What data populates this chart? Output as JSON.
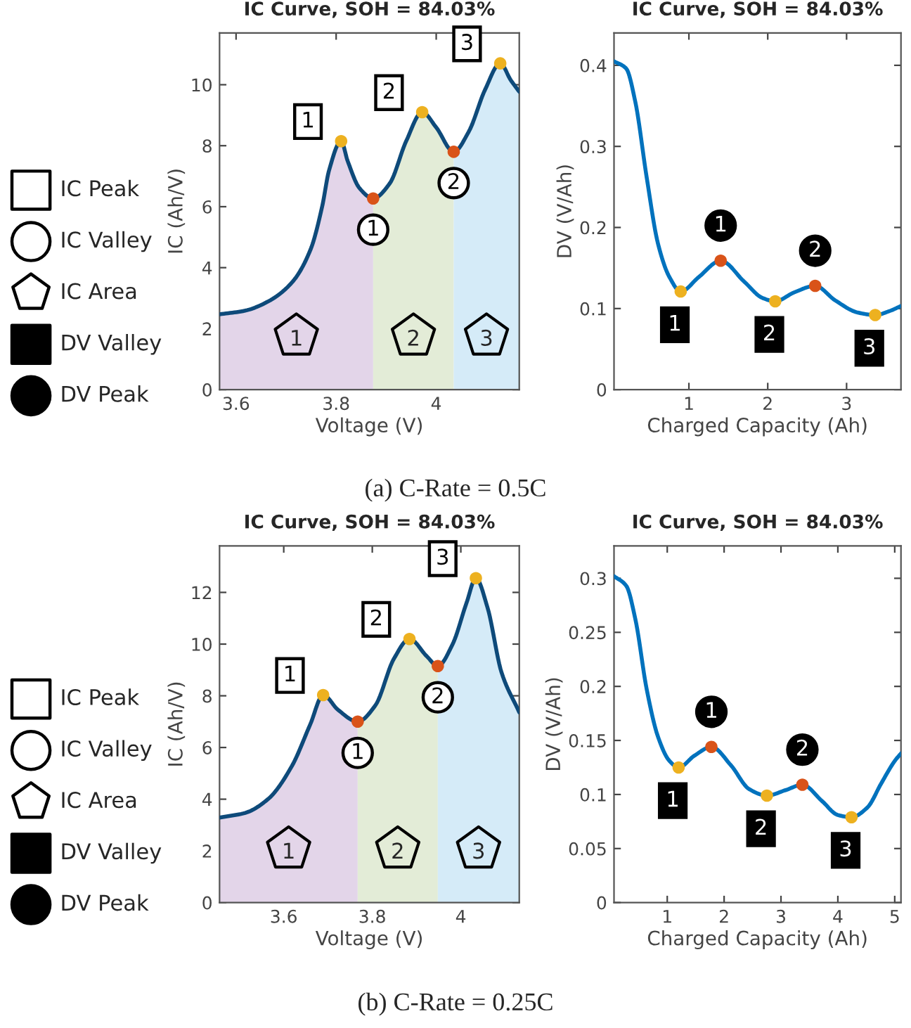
{
  "chart_data": [
    {
      "type": "other",
      "annotations": [
        "IC Peak",
        "IC Valley",
        "IC Area",
        "DV Valley",
        "DV Peak"
      ]
    },
    {
      "type": "line",
      "title": "IC Curve, SOH = 84.03%",
      "xlabel": "Voltage (V)",
      "ylabel": "IC (Ah/V)",
      "xlim": [
        3.567,
        4.166
      ],
      "ylim": [
        0,
        11.7
      ],
      "xticks": [
        3.6,
        3.8,
        4
      ],
      "yticks": [
        0,
        2,
        4,
        6,
        8,
        10
      ],
      "grid": false,
      "legend": false,
      "annotations": [
        "(a) C-Rate = 0.5C",
        "1",
        "2",
        "3",
        "1",
        "2"
      ],
      "series": [
        {
          "type": "area",
          "name": "1",
          "color": "#e3d5e9",
          "x": [
            3.567,
            3.618,
            3.665,
            3.712,
            3.749,
            3.772,
            3.786,
            3.81,
            3.823,
            3.847,
            3.874
          ],
          "values": [
            2.47,
            2.59,
            2.9,
            3.52,
            4.6,
            6.0,
            7.2,
            8.15,
            7.5,
            6.6,
            6.27
          ]
        },
        {
          "type": "area",
          "name": "2",
          "color": "#e3ecd7",
          "x": [
            3.874,
            3.907,
            3.94,
            3.972,
            4.0,
            4.035
          ],
          "values": [
            6.27,
            6.76,
            8.15,
            9.1,
            8.6,
            7.8
          ]
        },
        {
          "type": "area",
          "name": "3",
          "color": "#d5ebf8",
          "x": [
            4.035,
            4.065,
            4.098,
            4.128,
            4.149,
            4.166
          ],
          "values": [
            7.8,
            8.46,
            9.85,
            10.7,
            10.15,
            9.77
          ]
        },
        {
          "type": "line",
          "color": "#0e4a7a",
          "x": [
            3.567,
            3.618,
            3.665,
            3.712,
            3.749,
            3.772,
            3.786,
            3.81,
            3.823,
            3.847,
            3.874,
            3.907,
            3.94,
            3.972,
            4.0,
            4.035,
            4.065,
            4.098,
            4.128,
            4.149,
            4.166
          ],
          "values": [
            2.47,
            2.59,
            2.9,
            3.52,
            4.6,
            6.0,
            7.2,
            8.15,
            7.5,
            6.6,
            6.27,
            6.76,
            8.15,
            9.1,
            8.6,
            7.8,
            8.46,
            9.85,
            10.7,
            10.15,
            9.77
          ]
        },
        {
          "type": "scatter",
          "color": "#edb120",
          "x": [
            3.81,
            3.972,
            4.128
          ],
          "values": [
            8.15,
            9.1,
            10.7
          ]
        },
        {
          "type": "scatter",
          "color": "#d95319",
          "x": [
            3.874,
            4.035
          ],
          "values": [
            6.27,
            7.8
          ]
        }
      ]
    },
    {
      "type": "line",
      "title": "IC Curve, SOH = 84.03%",
      "xlabel": "Charged Capacity (Ah)",
      "ylabel": "DV (V/Ah)",
      "xlim": [
        0.05,
        3.69
      ],
      "ylim": [
        0,
        0.44
      ],
      "xticks": [
        1,
        2,
        3
      ],
      "yticks": [
        0,
        0.1,
        0.2,
        0.3,
        0.4
      ],
      "grid": false,
      "legend": false,
      "annotations": [
        "1",
        "2",
        "3",
        "1",
        "2"
      ],
      "series": [
        {
          "type": "line",
          "color": "#0072bd",
          "x": [
            0.05,
            0.205,
            0.32,
            0.464,
            0.608,
            0.752,
            0.896,
            1.127,
            1.403,
            1.703,
            1.934,
            2.095,
            2.337,
            2.602,
            2.856,
            3.144,
            3.363,
            3.548,
            3.686
          ],
          "values": [
            0.405,
            0.396,
            0.355,
            0.262,
            0.18,
            0.139,
            0.121,
            0.139,
            0.159,
            0.133,
            0.113,
            0.109,
            0.12,
            0.128,
            0.11,
            0.095,
            0.092,
            0.097,
            0.103
          ]
        },
        {
          "type": "scatter",
          "color": "#edb120",
          "x": [
            0.896,
            2.095,
            3.363
          ],
          "values": [
            0.121,
            0.109,
            0.092
          ]
        },
        {
          "type": "scatter",
          "color": "#d95319",
          "x": [
            1.403,
            2.602
          ],
          "values": [
            0.159,
            0.128
          ]
        }
      ]
    },
    {
      "type": "other",
      "annotations": [
        "IC Peak",
        "IC Valley",
        "IC Area",
        "DV Valley",
        "DV Peak"
      ]
    },
    {
      "type": "line",
      "title": "IC Curve, SOH = 84.03%",
      "xlabel": "Voltage (V)",
      "ylabel": "IC (Ah/V)",
      "xlim": [
        3.455,
        4.132
      ],
      "ylim": [
        0,
        13.8
      ],
      "xticks": [
        3.6,
        3.8,
        4
      ],
      "yticks": [
        0,
        2,
        4,
        6,
        8,
        10,
        12
      ],
      "grid": false,
      "legend": false,
      "annotations": [
        "(b) C-Rate = 0.25C",
        "1",
        "2",
        "3",
        "1",
        "2"
      ],
      "series": [
        {
          "type": "area",
          "name": "1",
          "color": "#e3d5e9",
          "x": [
            3.455,
            3.513,
            3.565,
            3.618,
            3.66,
            3.689,
            3.723,
            3.767
          ],
          "values": [
            3.29,
            3.47,
            4.01,
            5.27,
            6.9,
            8.03,
            7.45,
            7.0
          ]
        },
        {
          "type": "area",
          "name": "2",
          "color": "#e3ecd7",
          "x": [
            3.767,
            3.807,
            3.849,
            3.884,
            3.923,
            3.948
          ],
          "values": [
            7.0,
            7.63,
            9.44,
            10.2,
            9.53,
            9.15
          ]
        },
        {
          "type": "area",
          "name": "3",
          "color": "#d5ebf8",
          "x": [
            3.948,
            3.981,
            4.013,
            4.034,
            4.06,
            4.092,
            4.132
          ],
          "values": [
            9.15,
            9.98,
            11.6,
            12.55,
            11.43,
            8.9,
            7.36
          ]
        },
        {
          "type": "line",
          "color": "#0e4a7a",
          "x": [
            3.455,
            3.513,
            3.565,
            3.618,
            3.66,
            3.689,
            3.723,
            3.767,
            3.807,
            3.849,
            3.884,
            3.923,
            3.948,
            3.981,
            4.013,
            4.034,
            4.06,
            4.092,
            4.132
          ],
          "values": [
            3.29,
            3.47,
            4.01,
            5.27,
            6.9,
            8.03,
            7.45,
            7.0,
            7.63,
            9.44,
            10.2,
            9.53,
            9.15,
            9.98,
            11.6,
            12.55,
            11.43,
            8.9,
            7.36
          ]
        },
        {
          "type": "scatter",
          "color": "#edb120",
          "x": [
            3.689,
            3.884,
            4.034
          ],
          "values": [
            8.03,
            10.2,
            12.55
          ]
        },
        {
          "type": "scatter",
          "color": "#d95319",
          "x": [
            3.767,
            3.948
          ],
          "values": [
            7.0,
            9.15
          ]
        }
      ]
    },
    {
      "type": "line",
      "title": "IC Curve, SOH = 84.03%",
      "xlabel": "Charged Capacity (Ah)",
      "ylabel": "DV (V/Ah)",
      "xlim": [
        0.064,
        5.11
      ],
      "ylim": [
        0,
        0.33
      ],
      "xticks": [
        1,
        2,
        3,
        4,
        5
      ],
      "yticks": [
        0,
        0.05,
        0.1,
        0.15,
        0.2,
        0.25,
        0.3
      ],
      "grid": false,
      "legend": false,
      "annotations": [
        "1",
        "2",
        "3",
        "1",
        "2"
      ],
      "series": [
        {
          "type": "line",
          "color": "#0072bd",
          "x": [
            0.064,
            0.28,
            0.44,
            0.64,
            0.84,
            1.04,
            1.2,
            1.48,
            1.776,
            2.12,
            2.44,
            2.752,
            3.08,
            3.376,
            3.72,
            4.0,
            4.24,
            4.52,
            4.76,
            5.0,
            5.11
          ],
          "values": [
            0.302,
            0.293,
            0.262,
            0.197,
            0.153,
            0.131,
            0.125,
            0.136,
            0.144,
            0.127,
            0.105,
            0.099,
            0.104,
            0.109,
            0.094,
            0.081,
            0.079,
            0.088,
            0.11,
            0.131,
            0.138
          ]
        },
        {
          "type": "scatter",
          "color": "#edb120",
          "x": [
            1.2,
            2.752,
            4.24
          ],
          "values": [
            0.125,
            0.099,
            0.079
          ]
        },
        {
          "type": "scatter",
          "color": "#d95319",
          "x": [
            1.776,
            3.376
          ],
          "values": [
            0.144,
            0.109
          ]
        }
      ]
    }
  ]
}
